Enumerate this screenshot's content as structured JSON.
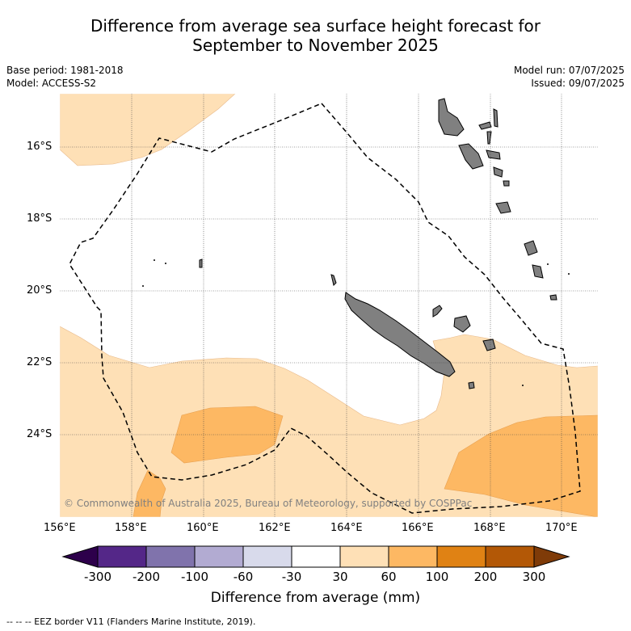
{
  "header": {
    "title_line1": "Difference from average sea surface height forecast for",
    "title_line2": "September to November 2025",
    "base_period": "Base period: 1981-2018",
    "model": "Model: ACCESS-S2",
    "model_run": "Model run: 07/07/2025",
    "issued": "Issued: 09/07/2025"
  },
  "map": {
    "lat_labels": [
      "16°S",
      "18°S",
      "20°S",
      "22°S",
      "24°S"
    ],
    "lon_labels": [
      "156°E",
      "158°E",
      "160°E",
      "162°E",
      "164°E",
      "166°E",
      "168°E",
      "170°E"
    ],
    "copyright": "© Commonwealth of Australia 2025, Bureau of Meteorology, supported by COSPPac",
    "land_color": "#808080",
    "gridlines": true
  },
  "colorbar": {
    "ticks": [
      "-300",
      "-200",
      "-100",
      "-60",
      "-30",
      "30",
      "60",
      "100",
      "200",
      "300"
    ],
    "colors": [
      "#2d004b",
      "#542788",
      "#8073ac",
      "#b2abd2",
      "#d8daeb",
      "#ffffff",
      "#fee0b6",
      "#fdb863",
      "#e08214",
      "#b35806",
      "#7f3b08"
    ],
    "title": "Difference from average (mm)"
  },
  "legend": {
    "eez_text": "-- -- -- EEZ border V11 (Flanders Marine Institute, 2019)."
  }
}
